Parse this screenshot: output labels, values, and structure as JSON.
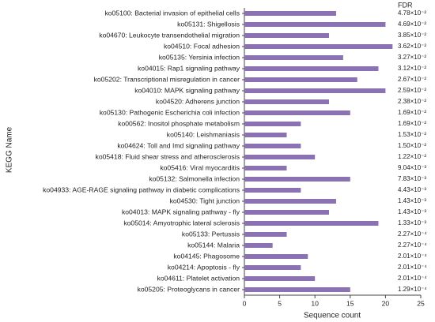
{
  "chart_data": {
    "type": "bar",
    "orientation": "horizontal",
    "x_label": "Sequence count",
    "y_label": "KEGG Name",
    "annotation_header": "FDR",
    "color": "#8b73b3",
    "categories": [
      "ko05100: Bacterial invasion of epithelial cells",
      "ko05131: Shigellosis",
      "ko04670: Leukocyte transendothelial migration",
      "ko04510: Focal adhesion",
      "ko05135: Yersinia infection",
      "ko04015: Rap1 signaling pathway",
      "ko05202: Transcriptional misregulation in cancer",
      "ko04010: MAPK signaling pathway",
      "ko04520: Adherens junction",
      "ko05130: Pathogenic Escherichia coli infection",
      "ko00562: Inositol phosphate metabolism",
      "ko05140: Leishmaniasis",
      "ko04624: Toll and Imd signaling pathway",
      "ko05418: Fluid shear stress and atherosclerosis",
      "ko05416: Viral myocarditis",
      "ko05132: Salmonella infection",
      "ko04933: AGE-RAGE signaling pathway in diabetic complications",
      "ko04530: Tight junction",
      "ko04013: MAPK signaling pathway - fly",
      "ko05014: Amyotrophic lateral sclerosis",
      "ko05133: Pertussis",
      "ko05144: Malaria",
      "ko04145: Phagosome",
      "ko04214: Apoptosis - fly",
      "ko04611: Platelet activation",
      "ko05205: Proteoglycans in cancer"
    ],
    "values": [
      13,
      20,
      12,
      21,
      14,
      19,
      16,
      20,
      12,
      15,
      8,
      6,
      8,
      10,
      6,
      15,
      8,
      13,
      12,
      19,
      6,
      4,
      9,
      8,
      10,
      15
    ],
    "fdr": [
      "4.78×10⁻²",
      "4.69×10⁻²",
      "3.85×10⁻²",
      "3.62×10⁻²",
      "3.27×10⁻²",
      "3.12×10⁻²",
      "2.67×10⁻²",
      "2.59×10⁻²",
      "2.38×10⁻²",
      "1.69×10⁻²",
      "1.69×10⁻²",
      "1.53×10⁻²",
      "1.50×10⁻²",
      "1.22×10⁻²",
      "9.04×10⁻³",
      "7.83×10⁻³",
      "4.43×10⁻³",
      "1.43×10⁻³",
      "1.43×10⁻³",
      "1.33×10⁻³",
      "2.27×10⁻⁴",
      "2.27×10⁻⁴",
      "2.01×10⁻⁴",
      "2.01×10⁻⁴",
      "2.01×10⁻⁴",
      "1.29×10⁻⁴"
    ],
    "xlim": [
      0,
      25
    ],
    "xticks": [
      0,
      5,
      10,
      15,
      20,
      25
    ],
    "grid": false
  }
}
